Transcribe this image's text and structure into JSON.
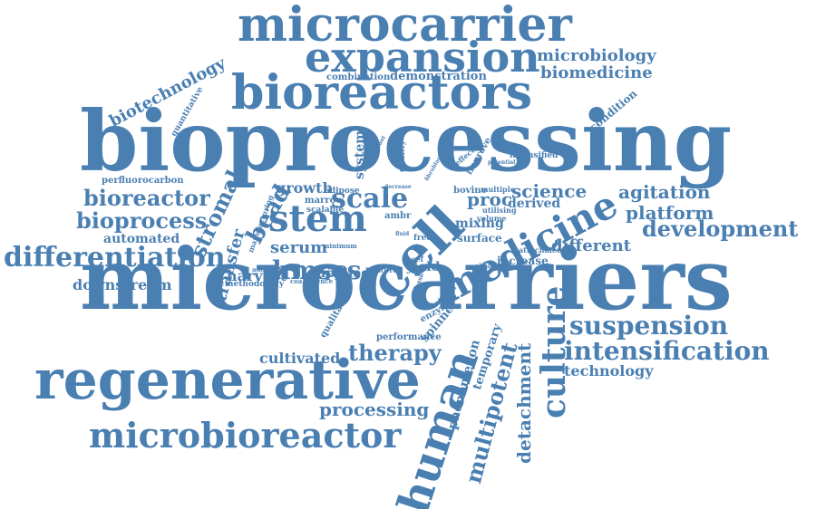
{
  "cloud": {
    "color": "#4a7fb2",
    "words": [
      "microcarrier",
      "expansion",
      "bioreactors",
      "bioprocessing",
      "microcarriers",
      "regenerative",
      "microbioreactor",
      "stem",
      "cell",
      "medicine",
      "human",
      "culture",
      "suspension",
      "intensification",
      "development",
      "differentiation",
      "bioreactor",
      "bioprocess",
      "stromal",
      "scale",
      "science",
      "agitation",
      "platform",
      "therapy",
      "processing",
      "multipotent",
      "detachment",
      "hmscs",
      "bead",
      "biotechnology",
      "microbiology",
      "biomedicine",
      "demonstration",
      "combination",
      "downstream",
      "automated",
      "transfer",
      "harvest",
      "serum",
      "growth",
      "proc",
      "derived",
      "mixing",
      "surface",
      "different",
      "increase",
      "applied",
      "yield",
      "cultivated",
      "technology",
      "phenomenon",
      "temporary",
      "spinner",
      "enzyme",
      "performance",
      "quantitative",
      "qualitative",
      "condition",
      "perfluorocarbon",
      "methodology",
      "manufacturing",
      "system",
      "quality",
      "improve",
      "effective",
      "intensified",
      "bovine",
      "multiple",
      "utilising",
      "volume",
      "marrow",
      "scalable",
      "adipose",
      "ambr",
      "free",
      "beef",
      "attachment",
      "challenge",
      "coalescence",
      "addition",
      "minimum",
      "stirred",
      "decrease",
      "potential",
      "phase",
      "reduction",
      "fluid",
      "significant",
      "fibroblast"
    ]
  }
}
